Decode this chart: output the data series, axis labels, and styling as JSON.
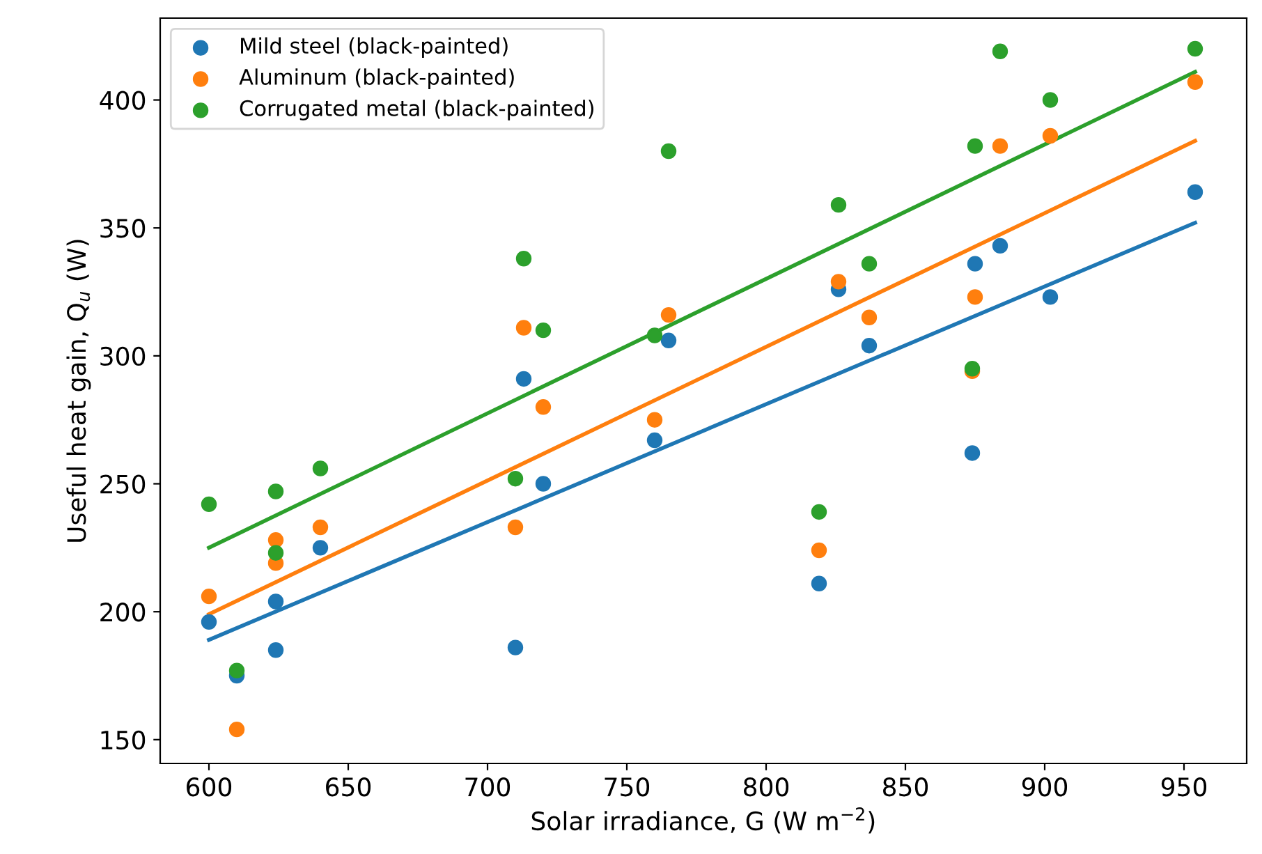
{
  "chart_data": {
    "type": "scatter",
    "xlabel": "Solar irradiance, G (W m$^{−2}$)",
    "ylabel": "Useful heat gain, Q$_{u}$ (W)",
    "x": [
      600,
      610,
      624,
      624,
      640,
      710,
      713,
      720,
      760,
      765,
      819,
      826,
      837,
      874,
      875,
      884,
      902,
      954
    ],
    "series": [
      {
        "name": "Mild steel (black-painted)",
        "color": "#1f77b4",
        "values": [
          196,
          175,
          204,
          185,
          225,
          186,
          291,
          250,
          267,
          306,
          211,
          326,
          304,
          262,
          336,
          343,
          323,
          364
        ]
      },
      {
        "name": "Aluminum (black-painted)",
        "color": "#ff7f0e",
        "values": [
          206,
          154,
          228,
          219,
          233,
          233,
          311,
          280,
          275,
          316,
          224,
          329,
          315,
          294,
          323,
          382,
          386,
          407
        ]
      },
      {
        "name": "Corrugated metal (black-painted)",
        "color": "#2ca02c",
        "values": [
          242,
          177,
          247,
          223,
          256,
          252,
          338,
          310,
          308,
          380,
          239,
          359,
          336,
          295,
          382,
          419,
          400,
          420
        ]
      },
      {
        "type": "line",
        "marker": "none",
        "color": "#1f77b4",
        "values": [
          189,
          null,
          null,
          null,
          null,
          null,
          null,
          null,
          null,
          null,
          null,
          null,
          null,
          null,
          null,
          null,
          null,
          352
        ]
      },
      {
        "type": "line",
        "marker": "none",
        "color": "#ff7f0e",
        "values": [
          199,
          null,
          null,
          null,
          null,
          null,
          null,
          null,
          null,
          null,
          null,
          null,
          null,
          null,
          null,
          null,
          null,
          384
        ]
      },
      {
        "type": "line",
        "marker": "none",
        "color": "#2ca02c",
        "values": [
          225,
          null,
          null,
          null,
          null,
          null,
          null,
          null,
          null,
          null,
          null,
          null,
          null,
          null,
          null,
          null,
          null,
          411
        ]
      }
    ],
    "xlim": [
      582.5,
      972.5
    ],
    "xticks": [
      600,
      650,
      700,
      750,
      800,
      850,
      900,
      950
    ],
    "ylim": [
      140.7,
      432
    ],
    "yticks": [
      150,
      200,
      250,
      300,
      350,
      400
    ],
    "marker": "circle",
    "legend": "top left",
    "grid": false
  }
}
